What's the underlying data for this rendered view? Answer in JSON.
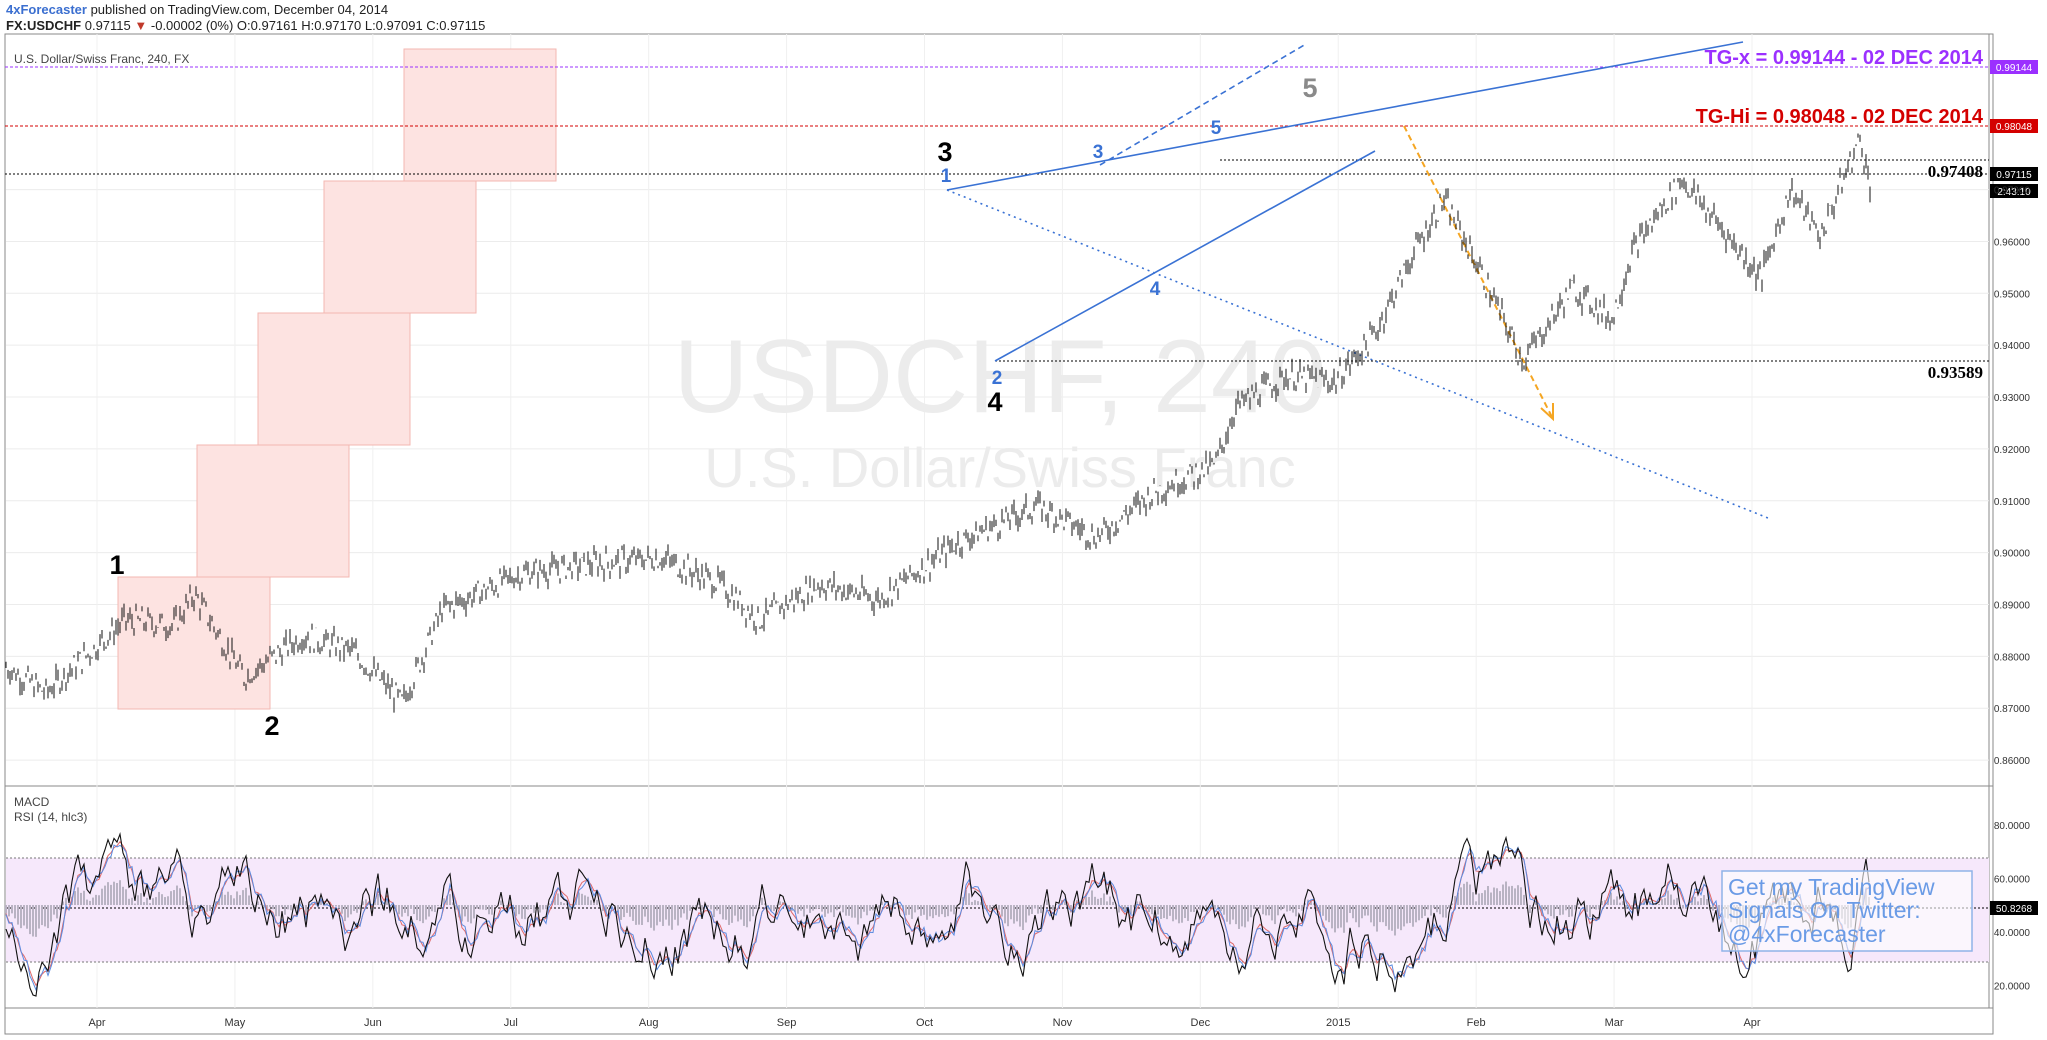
{
  "header": {
    "author": "4xForecaster",
    "published": "published on TradingView.com, December 04, 2014",
    "symbol": "FX:USDCHF",
    "last": "0.97115",
    "change": "-0.00002 (0%)",
    "ohlc": "O:0.97161 H:0.97170 L:0.97091 C:0.97115"
  },
  "chart_data": {
    "type": "candlestick",
    "title": "U.S. Dollar/Swiss Franc, 240, FX",
    "watermark_symbol": "USDCHF, 240",
    "watermark_name": "U.S. Dollar/Swiss Franc",
    "x_ticks": [
      "Apr",
      "May",
      "Jun",
      "Jul",
      "Aug",
      "Sep",
      "Oct",
      "Nov",
      "Dec",
      "2015",
      "Feb",
      "Mar",
      "Apr"
    ],
    "y_ticks": [
      "0.86000",
      "0.87000",
      "0.88000",
      "0.89000",
      "0.90000",
      "0.91000",
      "0.92000",
      "0.93000",
      "0.94000",
      "0.95000",
      "0.96000",
      "0.97000"
    ],
    "ylim": [
      0.855,
      1.0
    ],
    "last_price_label": "0.97115",
    "countdown_label": "2:43:10",
    "price_path": [
      {
        "x": 0,
        "y": 0.878
      },
      {
        "x": 0.02,
        "y": 0.873
      },
      {
        "x": 0.06,
        "y": 0.887
      },
      {
        "x": 0.085,
        "y": 0.886
      },
      {
        "x": 0.095,
        "y": 0.892
      },
      {
        "x": 0.12,
        "y": 0.876
      },
      {
        "x": 0.15,
        "y": 0.884
      },
      {
        "x": 0.175,
        "y": 0.881
      },
      {
        "x": 0.2,
        "y": 0.871
      },
      {
        "x": 0.22,
        "y": 0.889
      },
      {
        "x": 0.26,
        "y": 0.896
      },
      {
        "x": 0.3,
        "y": 0.898
      },
      {
        "x": 0.33,
        "y": 0.899
      },
      {
        "x": 0.36,
        "y": 0.894
      },
      {
        "x": 0.38,
        "y": 0.887
      },
      {
        "x": 0.41,
        "y": 0.894
      },
      {
        "x": 0.44,
        "y": 0.891
      },
      {
        "x": 0.48,
        "y": 0.902
      },
      {
        "x": 0.52,
        "y": 0.909
      },
      {
        "x": 0.55,
        "y": 0.903
      },
      {
        "x": 0.58,
        "y": 0.912
      },
      {
        "x": 0.61,
        "y": 0.917
      },
      {
        "x": 0.62,
        "y": 0.928
      },
      {
        "x": 0.645,
        "y": 0.934
      },
      {
        "x": 0.67,
        "y": 0.933
      },
      {
        "x": 0.69,
        "y": 0.942
      },
      {
        "x": 0.71,
        "y": 0.958
      },
      {
        "x": 0.725,
        "y": 0.968
      },
      {
        "x": 0.74,
        "y": 0.957
      },
      {
        "x": 0.765,
        "y": 0.937
      },
      {
        "x": 0.79,
        "y": 0.951
      },
      {
        "x": 0.81,
        "y": 0.945
      },
      {
        "x": 0.82,
        "y": 0.958
      },
      {
        "x": 0.845,
        "y": 0.972
      },
      {
        "x": 0.86,
        "y": 0.965
      },
      {
        "x": 0.885,
        "y": 0.953
      },
      {
        "x": 0.9,
        "y": 0.97
      },
      {
        "x": 0.915,
        "y": 0.961
      },
      {
        "x": 0.935,
        "y": 0.98
      },
      {
        "x": 0.94,
        "y": 0.971
      }
    ],
    "wave_labels_primary": [
      "1",
      "2",
      "3",
      "4",
      "5"
    ],
    "wave_labels_minor": [
      "1",
      "2",
      "3",
      "4",
      "5"
    ],
    "levels": [
      {
        "label": "TG-x = 0.99144 - 02 DEC 2014",
        "axis_label": "0.99144",
        "color": "#9b30ff"
      },
      {
        "label": "TG-Hi = 0.98048 - 02 DEC 2014",
        "axis_label": "0.98048",
        "color": "#d40000"
      },
      {
        "label": "0.97408",
        "color": "#000000"
      },
      {
        "label": "0.93589",
        "color": "#000000"
      }
    ],
    "indicators": {
      "macd_label": "MACD",
      "rsi_label": "RSI (14, hlc3)",
      "rsi_ticks": [
        "20.0000",
        "40.0000",
        "60.0000",
        "80.0000"
      ],
      "rsi_last": "50.8268"
    }
  },
  "promo": {
    "line1": "Get my TradingView",
    "line2": "Signals On Twitter:",
    "line3": "@4xForecaster"
  },
  "colors": {
    "candle": "#111111",
    "trendline": "#3a72d4",
    "projection": "#f5a623",
    "box_fill": "#fde3e1",
    "box_stroke": "#f3b7b1",
    "rsi_band": "#f6e8fb"
  }
}
